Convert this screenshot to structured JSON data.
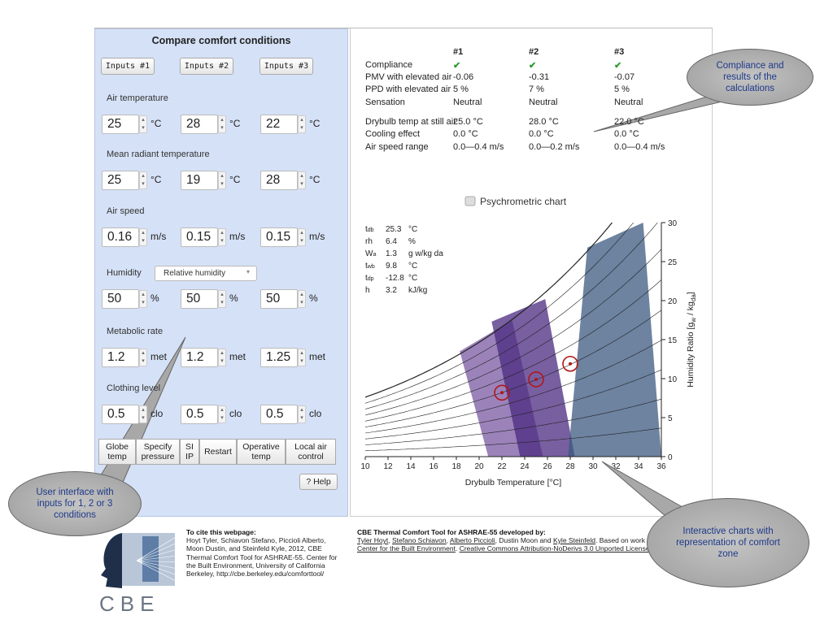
{
  "left_panel": {
    "title": "Compare comfort conditions",
    "input_tabs": [
      "Inputs #1",
      "Inputs #2",
      "Inputs #3"
    ],
    "sections": [
      {
        "label": "Air temperature",
        "values": [
          25,
          28,
          22
        ],
        "unit": "°C"
      },
      {
        "label": "Mean radiant temperature",
        "values": [
          25,
          19,
          28
        ],
        "unit": "°C"
      },
      {
        "label": "Air speed",
        "values": [
          0.16,
          0.15,
          0.15
        ],
        "unit": "m/s"
      },
      {
        "label": "Humidity",
        "select": "Relative humidity",
        "values": [
          50,
          50,
          50
        ],
        "unit": "%"
      },
      {
        "label": "Metabolic rate",
        "values": [
          1.2,
          1.2,
          1.25
        ],
        "unit": "met"
      },
      {
        "label": "Clothing level",
        "values": [
          0.5,
          0.5,
          0.5
        ],
        "unit": "clo"
      }
    ],
    "buttons": [
      "Globe temp",
      "Specify pressure",
      "SI IP",
      "Restart",
      "Operative temp",
      "Local air control"
    ],
    "help": "? Help"
  },
  "results": {
    "columns": [
      "#1",
      "#2",
      "#3"
    ],
    "rows": [
      {
        "label": "Compliance",
        "values": [
          "✔",
          "✔",
          "✔"
        ]
      },
      {
        "label": "PMV with elevated air",
        "values": [
          -0.06,
          -0.31,
          -0.07
        ]
      },
      {
        "label": "PPD with elevated air",
        "values": [
          "5 %",
          "7 %",
          "5 %"
        ]
      },
      {
        "label": "Sensation",
        "values": [
          "Neutral",
          "Neutral",
          "Neutral"
        ]
      },
      {
        "label": "Drybulb temp at still air",
        "values": [
          "25.0 °C",
          "28.0 °C",
          "22.0 °C"
        ]
      },
      {
        "label": "Cooling effect",
        "values": [
          "0.0 °C",
          "0.0 °C",
          "0.0 °C"
        ]
      },
      {
        "label": "Air speed range",
        "values": [
          "0.0—0.4 m/s",
          "0.0—0.2 m/s",
          "0.0—0.4 m/s"
        ]
      }
    ]
  },
  "psychrometric_chart": {
    "title": "Psychrometric chart",
    "xlabel": "Drybulb Temperature [°C]",
    "ylabel_parts": [
      "Humidity Ratio [g",
      "w",
      " / kg",
      "da",
      "]"
    ],
    "xlim": [
      10,
      36
    ],
    "ylim": [
      0,
      30
    ],
    "xticks": [
      10,
      12,
      14,
      16,
      18,
      20,
      22,
      24,
      26,
      28,
      30,
      32,
      34,
      36
    ],
    "yticks": [
      0,
      5,
      10,
      15,
      20,
      25,
      30
    ],
    "zones": [
      {
        "color": "#7a5aa3",
        "x": [
          20.8,
          25.6,
          22.9,
          18.3
        ],
        "y": [
          0,
          0,
          17.5,
          13.5
        ]
      },
      {
        "color": "#4b2a80",
        "x": [
          23.6,
          28.4,
          25.8,
          21.1
        ],
        "y": [
          0,
          0,
          20.2,
          17.3
        ]
      },
      {
        "color": "#3c5a80",
        "x": [
          27.8,
          36,
          34.4,
          29.5
        ],
        "y": [
          0,
          0,
          30,
          26.8
        ]
      }
    ],
    "points": {
      "x": [
        22,
        25,
        28
      ],
      "y": [
        8.2,
        9.9,
        11.9
      ]
    },
    "info": [
      {
        "sym": "t",
        "sub": "db",
        "value": 25.3,
        "unit": "°C"
      },
      {
        "sym": "rh",
        "value": 6.4,
        "unit": "%"
      },
      {
        "sym": "W",
        "sub": "a",
        "value": 1.3,
        "unit": "g w/kg da"
      },
      {
        "sym": "t",
        "sub": "wb",
        "value": 9.8,
        "unit": "°C"
      },
      {
        "sym": "t",
        "sub": "dp",
        "value": -12.8,
        "unit": "°C"
      },
      {
        "sym": "h",
        "value": 3.2,
        "unit": "kJ/kg"
      }
    ]
  },
  "footer": {
    "cite_title": "To cite this webpage:",
    "cite_text": "Hoyt Tyler, Schiavon Stefano, Piccioli Alberto, Moon Dustin, and Steinfeld Kyle, 2012, CBE Thermal Comfort Tool for ASHRAE-55. Center for the Built Environment, University of California Berkeley, http://cbe.berkeley.edu/comforttool/",
    "logo_text": "CBE",
    "credits_title": "CBE Thermal Comfort Tool for ASHRAE-55 developed by:",
    "credits": [
      {
        "text": "Tyler Hoyt",
        "link": true
      },
      {
        "text": ", "
      },
      {
        "text": "Stefano Schiavon",
        "link": true
      },
      {
        "text": ", "
      },
      {
        "text": "Alberto Piccioli",
        "link": true
      },
      {
        "text": ", Dustin Moon and "
      },
      {
        "text": "Kyle Steinfeld",
        "link": true
      },
      {
        "text": ". Based on work at "
      },
      {
        "text": "Center for the Built Environment",
        "link": true
      },
      {
        "text": ". "
      },
      {
        "text": "Creative Commons Attribution-NoDerivs 3.0 Unported License",
        "link": true
      },
      {
        "text": "."
      }
    ]
  },
  "callouts": [
    "Compliance and results of the calculations",
    "User interface with inputs for 1, 2 or 3 conditions",
    "Interactive charts with representation of comfort zone"
  ]
}
